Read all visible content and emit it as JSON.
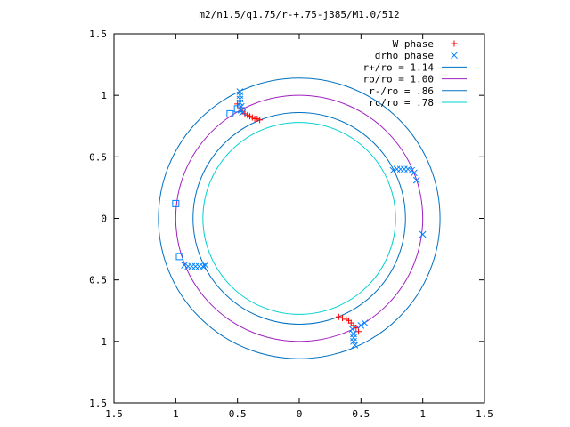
{
  "chart_data": {
    "type": "scatter",
    "title": "m2/n1.5/q1.75/r-+.75-j385/M1.0/512",
    "xlim": [
      -1.5,
      1.5
    ],
    "ylim": [
      -1.5,
      1.5
    ],
    "x_ticks": [
      -1.5,
      -1,
      -0.5,
      0,
      0.5,
      1,
      1.5
    ],
    "y_ticks": [
      -1.5,
      -1,
      -0.5,
      0,
      0.5,
      1,
      1.5
    ],
    "x_tick_labels": [
      "1.5",
      "1",
      "0.5",
      "0",
      "0.5",
      "1",
      "1.5"
    ],
    "y_tick_labels": [
      "1.5",
      "1",
      "0.5",
      "0",
      "0.5",
      "1",
      "1.5"
    ],
    "grid": false,
    "legend_position": "top-right",
    "legend": [
      {
        "label": "W phase",
        "marker": "plus",
        "color": "#ff0000"
      },
      {
        "label": "drho phase",
        "marker": "cross",
        "color": "#0080ff"
      },
      {
        "label": "r+/ro = 1.14",
        "marker": "line",
        "color": "#0070c0"
      },
      {
        "label": "ro/ro = 1.00",
        "marker": "line",
        "color": "#a020c0"
      },
      {
        "label": "r-/ro = .86",
        "marker": "line",
        "color": "#0070c0"
      },
      {
        "label": "rc/ro = .78",
        "marker": "line",
        "color": "#00d0d0"
      }
    ],
    "circles": [
      {
        "r": 1.14,
        "color": "#0070c0"
      },
      {
        "r": 1.0,
        "color": "#a020c0"
      },
      {
        "r": 0.86,
        "color": "#0070c0"
      },
      {
        "r": 0.78,
        "color": "#00d0d0"
      }
    ],
    "series": [
      {
        "name": "W phase",
        "marker": "plus",
        "color": "#ff0000",
        "points": [
          [
            -0.5,
            0.93
          ],
          [
            -0.48,
            0.9
          ],
          [
            -0.46,
            0.87
          ],
          [
            -0.44,
            0.85
          ],
          [
            -0.42,
            0.84
          ],
          [
            -0.4,
            0.83
          ],
          [
            -0.38,
            0.82
          ],
          [
            -0.36,
            0.81
          ],
          [
            -0.34,
            0.81
          ],
          [
            -0.32,
            0.8
          ],
          [
            0.32,
            -0.8
          ],
          [
            0.35,
            -0.81
          ],
          [
            0.38,
            -0.82
          ],
          [
            0.4,
            -0.83
          ],
          [
            0.42,
            -0.85
          ],
          [
            0.44,
            -0.87
          ],
          [
            0.46,
            -0.89
          ],
          [
            0.48,
            -0.92
          ]
        ]
      },
      {
        "name": "drho phase",
        "marker": "cross",
        "color": "#0080ff",
        "points": [
          [
            -0.48,
            1.03
          ],
          [
            -0.48,
            1.0
          ],
          [
            -0.48,
            0.97
          ],
          [
            -0.48,
            0.94
          ],
          [
            -0.47,
            0.91
          ],
          [
            -0.47,
            0.88
          ],
          [
            -0.46,
            0.86
          ],
          [
            0.76,
            0.39
          ],
          [
            0.79,
            0.4
          ],
          [
            0.82,
            0.4
          ],
          [
            0.85,
            0.4
          ],
          [
            0.88,
            0.4
          ],
          [
            0.91,
            0.39
          ],
          [
            0.93,
            0.37
          ],
          [
            0.95,
            0.31
          ],
          [
            1.0,
            -0.13
          ],
          [
            -0.93,
            -0.38
          ],
          [
            -0.9,
            -0.39
          ],
          [
            -0.87,
            -0.39
          ],
          [
            -0.84,
            -0.39
          ],
          [
            -0.81,
            -0.39
          ],
          [
            -0.78,
            -0.39
          ],
          [
            -0.76,
            -0.38
          ],
          [
            0.43,
            -0.9
          ],
          [
            0.44,
            -0.94
          ],
          [
            0.44,
            -0.97
          ],
          [
            0.44,
            -1.0
          ],
          [
            0.45,
            -1.03
          ],
          [
            0.5,
            -0.87
          ],
          [
            0.53,
            -0.85
          ]
        ]
      },
      {
        "name": "",
        "marker": "square",
        "color": "#0080ff",
        "points": [
          [
            -1.0,
            0.12
          ],
          [
            -0.97,
            -0.31
          ],
          [
            -0.56,
            0.85
          ],
          [
            -0.5,
            0.89
          ]
        ]
      }
    ]
  }
}
